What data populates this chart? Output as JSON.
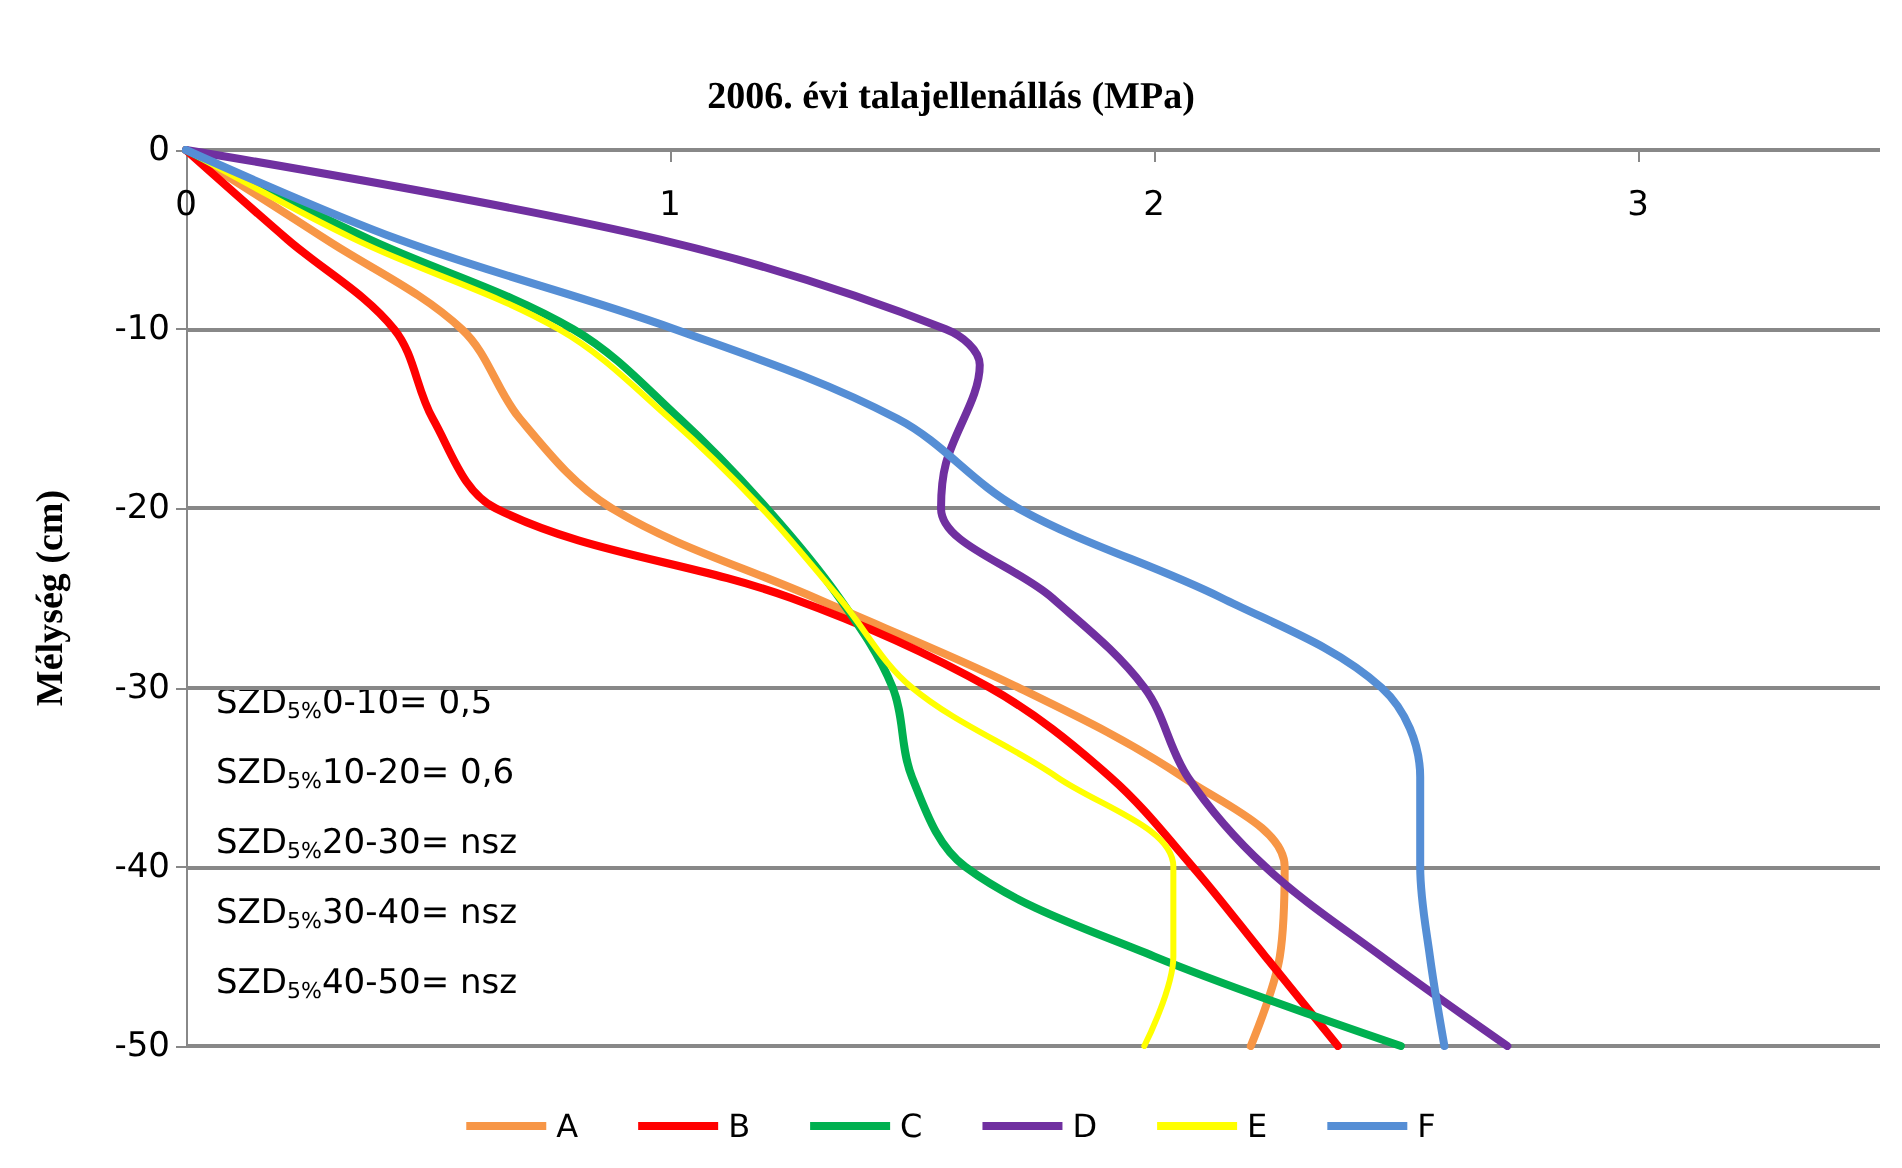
{
  "chart_data": {
    "type": "line",
    "title": "2006. évi talajellenállás (MPa)",
    "ylabel": "Mélység (cm)",
    "xlim": [
      0,
      3.5
    ],
    "xticks": [
      0,
      1,
      2,
      3
    ],
    "ylim": [
      -50,
      0
    ],
    "yticks": [
      -50,
      -40,
      -30,
      -20,
      -10,
      0
    ],
    "grid": "y",
    "legend": "bottom",
    "marker": "none",
    "line_style": "solid",
    "annotations": [
      "SZD$_{5%}$0-10= 0,5",
      "SZD$_{5%}$10-20= 0,6",
      "SZD$_{5%}$20-30= nsz",
      "SZD$_{5%}$30-40= nsz",
      "SZD$_{5%}$40-50= nsz"
    ],
    "series": [
      {
        "name": "A",
        "color": "#f79646",
        "x": [
          0,
          0.29,
          0.57,
          0.69,
          0.88,
          1.3,
          1.72,
          2.06,
          2.27,
          2.26,
          2.2
        ],
        "values": [
          0,
          -5,
          -10,
          -15,
          -20,
          -25,
          -30,
          -35,
          -40,
          -45,
          -50
        ]
      },
      {
        "name": "B",
        "color": "#ff0000",
        "x": [
          0,
          0.21,
          0.43,
          0.51,
          0.64,
          1.25,
          1.66,
          1.91,
          2.08,
          2.23,
          2.38
        ],
        "values": [
          0,
          -5,
          -10,
          -15,
          -20,
          -25,
          -30,
          -35,
          -40,
          -45,
          -50
        ]
      },
      {
        "name": "C",
        "color": "#00b050",
        "x": [
          0,
          0.38,
          0.8,
          1.02,
          1.2,
          1.35,
          1.46,
          1.5,
          1.61,
          2.0,
          2.51
        ],
        "values": [
          0,
          -5,
          -10,
          -15,
          -20,
          -25,
          -30,
          -35,
          -40,
          -45,
          -50
        ]
      },
      {
        "name": "D",
        "color": "#7030a0",
        "x": [
          0,
          0.98,
          1.57,
          1.64,
          1.57,
          1.56,
          1.79,
          1.98,
          2.07,
          2.23,
          2.47,
          2.73
        ],
        "values": [
          0,
          -5,
          -10,
          -12,
          -17.5,
          -20,
          -25,
          -30,
          -35,
          -40,
          -45,
          -50
        ]
      },
      {
        "name": "E",
        "color": "#ffff00",
        "x": [
          0,
          0.35,
          0.77,
          1.0,
          1.19,
          1.35,
          1.5,
          1.8,
          2.04,
          2.04,
          1.98
        ],
        "values": [
          0,
          -5,
          -10,
          -15,
          -20,
          -25,
          -30,
          -35,
          -40,
          -45,
          -50
        ]
      },
      {
        "name": "F",
        "color": "#558ed5",
        "x": [
          0,
          0.44,
          1.01,
          1.47,
          1.72,
          2.14,
          2.47,
          2.55,
          2.55,
          2.57,
          2.6
        ],
        "values": [
          0,
          -5,
          -10,
          -15,
          -20,
          -25,
          -30,
          -35,
          -40,
          -45,
          -50
        ]
      }
    ]
  }
}
